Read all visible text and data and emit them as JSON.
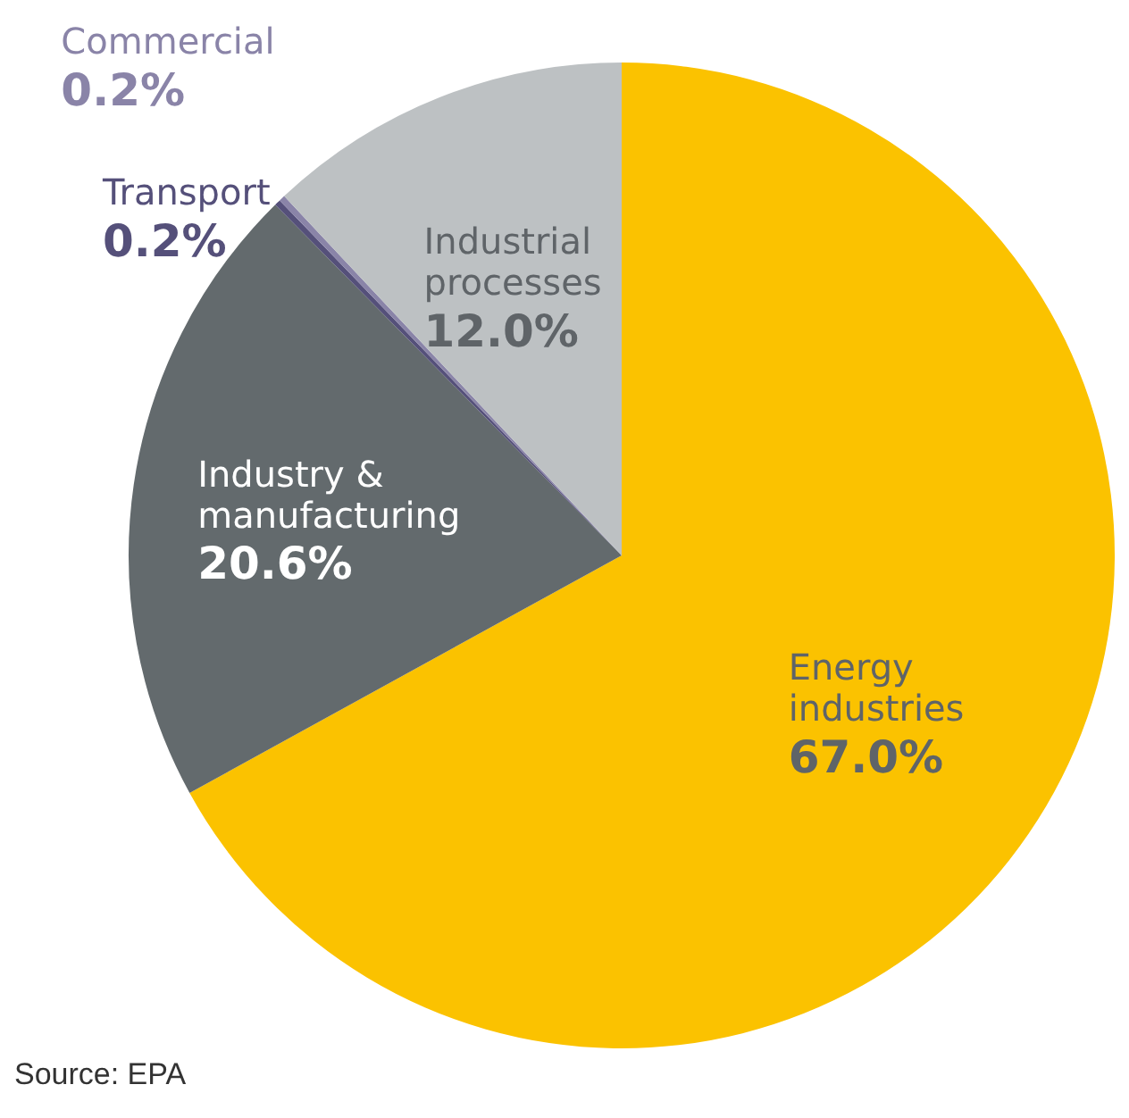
{
  "chart_data": {
    "type": "pie",
    "categories": [
      "Energy industries",
      "Industry & manufacturing",
      "Transport",
      "Commercial",
      "Industrial processes"
    ],
    "values": [
      67.0,
      20.6,
      0.2,
      0.2,
      12.0
    ],
    "colors": [
      "#fbc200",
      "#636a6d",
      "#55507a",
      "#8a84a8",
      "#bdc1c3"
    ],
    "value_labels": [
      "67.0%",
      "20.6%",
      "0.2%",
      "0.2%",
      "12.0%"
    ],
    "legend": false,
    "annotations": [
      "Source: EPA"
    ]
  }
}
